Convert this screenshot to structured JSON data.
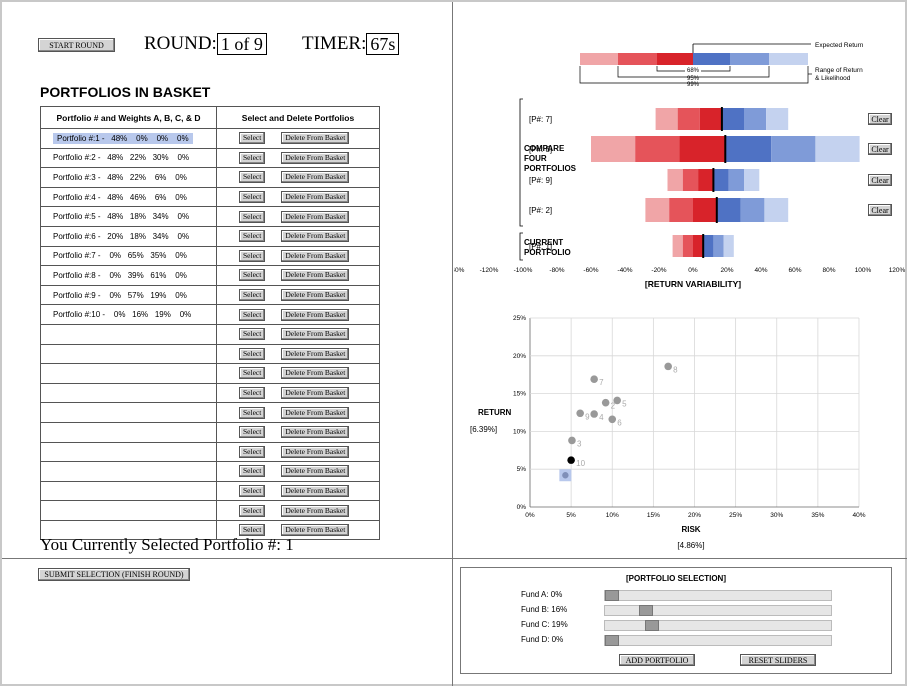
{
  "round": {
    "start_label": "START ROUND",
    "round_label": "ROUND:",
    "round_value": "1 of 9",
    "timer_label": "TIMER:",
    "timer_value": "67s"
  },
  "basket": {
    "title": "PORTFOLIOS IN BASKET",
    "col1_header": "Portfolio # and Weights A, B, C, & D",
    "col2_header": "Select and Delete Portfolios",
    "select_label": "Select",
    "delete_label": "Delete From Basket",
    "rows": [
      "Portfolio #:1 -   48%    0%    0%    0%",
      "Portfolio #:2 -   48%   22%   30%    0%",
      "Portfolio #:3 -   48%   22%    6%    0%",
      "Portfolio #:4 -   48%   46%    6%    0%",
      "Portfolio #:5 -   48%   18%   34%    0%",
      "Portfolio #:6 -   20%   18%   34%    0%",
      "Portfolio #:7 -    0%   65%   35%    0%",
      "Portfolio #:8 -    0%   39%   61%    0%",
      "Portfolio #:9 -    0%   57%   19%    0%",
      "Portfolio #:10 -    0%   16%   19%    0%",
      "",
      "",
      "",
      "",
      "",
      "",
      "",
      "",
      "",
      "",
      ""
    ],
    "selected_text": "You Currently Selected Portfolio #: 1"
  },
  "submit_label": "SUBMIT SELECTION (FINISH ROUND)",
  "legend": {
    "expected_return": "Expected Return",
    "range_label_1": "Range of Return",
    "range_label_2": "& Likelihood",
    "p68": "68%",
    "p95": "95%",
    "p99": "99%"
  },
  "compare": {
    "label_1": "COMPARE",
    "label_2": "FOUR",
    "label_3": "PORTFOLIOS",
    "current_1": "CURRENT",
    "current_2": "PORTFOLIO",
    "clear_label": "Clear",
    "x_axis_label": "[RETURN VARIABILITY]",
    "colors": {
      "neg_dark": "#d8232a",
      "neg_mid": "#e5545a",
      "neg_light": "#f0a5a7",
      "pos_dark": "#4f72c4",
      "pos_mid": "#7f9bd8",
      "pos_light": "#c4d2ef"
    }
  },
  "chart_data": [
    {
      "type": "range-bars",
      "x_ticks": [
        "-140%",
        "-120%",
        "-100%",
        "-80%",
        "-60%",
        "-40%",
        "-20%",
        "0%",
        "20%",
        "40%",
        "60%",
        "80%",
        "100%",
        "120%",
        "140%"
      ],
      "xlim": [
        -140,
        140
      ],
      "xlabel": "[RETURN VARIABILITY]",
      "rows": [
        {
          "label": "[P#: 7]",
          "expected": 17,
          "r68": [
            4,
            30
          ],
          "r95": [
            -9,
            43
          ],
          "r99": [
            -22,
            56
          ]
        },
        {
          "label": "[P#: 8]",
          "expected": 19,
          "r68": [
            -8,
            46
          ],
          "r95": [
            -34,
            72
          ],
          "r99": [
            -60,
            98
          ]
        },
        {
          "label": "[P#: 9]",
          "expected": 12,
          "r68": [
            3,
            21
          ],
          "r95": [
            -6,
            30
          ],
          "r99": [
            -15,
            39
          ]
        },
        {
          "label": "[P#: 2]",
          "expected": 14,
          "r68": [
            0,
            28
          ],
          "r95": [
            -14,
            42
          ],
          "r99": [
            -28,
            56
          ]
        },
        {
          "label": "[P#: 1]",
          "expected": 6,
          "r68": [
            0,
            12
          ],
          "r95": [
            -6,
            18
          ],
          "r99": [
            -12,
            24
          ]
        }
      ]
    },
    {
      "type": "scatter",
      "xlabel": "RISK",
      "ylabel": "RETURN",
      "x_value_label": "[4.86%]",
      "y_value_label": "[6.39%]",
      "x_ticks": [
        "0%",
        "5%",
        "10%",
        "15%",
        "20%",
        "25%",
        "30%",
        "35%",
        "40%"
      ],
      "y_ticks": [
        "0%",
        "5%",
        "10%",
        "15%",
        "20%",
        "25%"
      ],
      "xlim": [
        0,
        40
      ],
      "ylim": [
        0,
        25
      ],
      "points": [
        {
          "label": "",
          "x": 4.3,
          "y": 4.2,
          "selected": true
        },
        {
          "label": "10",
          "x": 5.0,
          "y": 6.2,
          "current": true
        },
        {
          "label": "3",
          "x": 5.1,
          "y": 8.8
        },
        {
          "label": "9",
          "x": 6.1,
          "y": 12.4
        },
        {
          "label": "4",
          "x": 7.8,
          "y": 12.3
        },
        {
          "label": "2",
          "x": 9.2,
          "y": 13.8
        },
        {
          "label": "6",
          "x": 10.0,
          "y": 11.6
        },
        {
          "label": "5",
          "x": 10.6,
          "y": 14.1
        },
        {
          "label": "7",
          "x": 7.8,
          "y": 16.9
        },
        {
          "label": "8",
          "x": 16.8,
          "y": 18.6
        }
      ]
    }
  ],
  "selection": {
    "title": "[PORTFOLIO SELECTION]",
    "funds": [
      {
        "label": "Fund A: 0%",
        "value": 0
      },
      {
        "label": "Fund B: 16%",
        "value": 16
      },
      {
        "label": "Fund C: 19%",
        "value": 19
      },
      {
        "label": "Fund D: 0%",
        "value": 0
      }
    ],
    "add_label": "ADD PORTFOLIO",
    "reset_label": "RESET SLIDERS"
  }
}
